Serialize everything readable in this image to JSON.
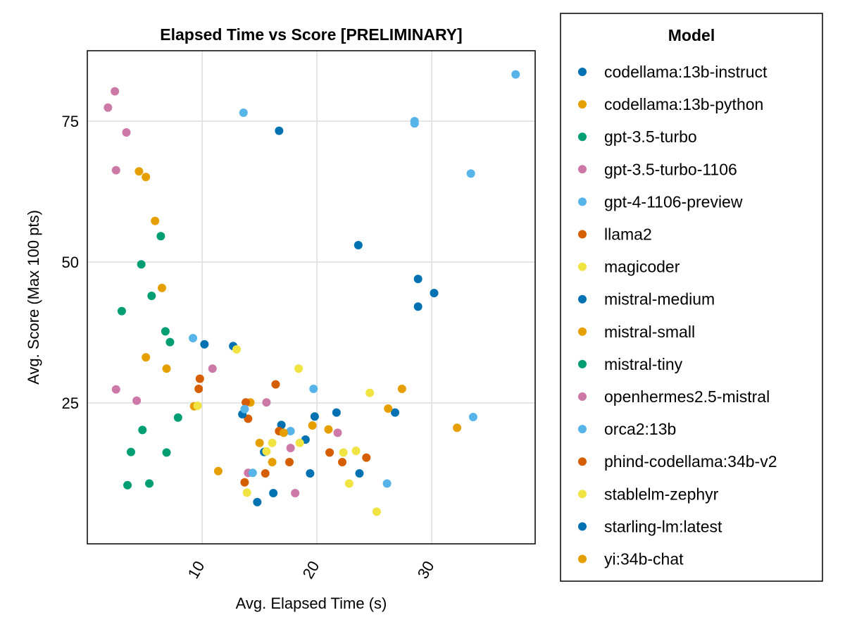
{
  "chart_data": {
    "type": "scatter",
    "title": "Elapsed Time vs Score [PRELIMINARY]",
    "xlabel": "Avg. Elapsed Time (s)",
    "ylabel": "Avg. Score (Max 100 pts)",
    "xlim": [
      0,
      39
    ],
    "ylim": [
      0,
      87.5
    ],
    "xticks": [
      10,
      20,
      30
    ],
    "yticks": [
      25,
      50,
      75
    ],
    "grid": true,
    "legend": {
      "title": "Model",
      "position": "right-outside"
    },
    "series": [
      {
        "name": "codellama:13b-instruct",
        "color": "#0072B2",
        "points": [
          [
            16.7,
            73.3
          ],
          [
            23.6,
            53.0
          ],
          [
            28.8,
            47.0
          ],
          [
            28.8,
            42.1
          ],
          [
            30.2,
            44.5
          ],
          [
            10.2,
            35.4
          ],
          [
            12.7,
            35.1
          ],
          [
            21.7,
            23.3
          ],
          [
            26.8,
            23.3
          ],
          [
            16.9,
            21.1
          ],
          [
            19.0,
            18.5
          ],
          [
            15.4,
            16.3
          ],
          [
            19.4,
            12.5
          ],
          [
            23.7,
            12.5
          ],
          [
            16.2,
            9.0
          ],
          [
            14.8,
            7.4
          ]
        ]
      },
      {
        "name": "codellama:13b-python",
        "color": "#E69F00",
        "points": [
          [
            4.5,
            66.1
          ],
          [
            5.1,
            65.1
          ],
          [
            5.9,
            57.3
          ],
          [
            6.5,
            45.4
          ],
          [
            5.1,
            33.1
          ],
          [
            6.9,
            31.1
          ],
          [
            9.3,
            24.4
          ],
          [
            14.2,
            25.1
          ],
          [
            27.4,
            27.5
          ],
          [
            26.2,
            24.0
          ]
        ]
      },
      {
        "name": "gpt-3.5-turbo",
        "color": "#009E73",
        "points": [
          [
            6.4,
            54.6
          ],
          [
            4.7,
            49.6
          ],
          [
            5.6,
            44.0
          ],
          [
            3.0,
            41.3
          ],
          [
            6.8,
            37.7
          ],
          [
            7.2,
            35.8
          ],
          [
            7.9,
            22.4
          ],
          [
            4.8,
            20.2
          ],
          [
            3.8,
            16.3
          ],
          [
            6.9,
            16.2
          ],
          [
            3.5,
            10.4
          ],
          [
            5.4,
            10.7
          ]
        ]
      },
      {
        "name": "gpt-3.5-turbo-1106",
        "color": "#CC79A7",
        "points": [
          [
            2.4,
            80.3
          ],
          [
            1.8,
            77.4
          ],
          [
            3.4,
            73.0
          ],
          [
            2.5,
            66.3
          ],
          [
            2.5,
            27.4
          ],
          [
            4.3,
            25.4
          ],
          [
            10.9,
            31.1
          ],
          [
            15.6,
            25.1
          ],
          [
            17.7,
            17.0
          ],
          [
            21.8,
            19.7
          ],
          [
            14.0,
            12.6
          ],
          [
            18.1,
            9.0
          ]
        ]
      },
      {
        "name": "gpt-4-1106-preview",
        "color": "#56B4E9",
        "points": [
          [
            37.3,
            83.3
          ],
          [
            13.6,
            76.5
          ],
          [
            28.5,
            75.0
          ],
          [
            28.5,
            74.6
          ],
          [
            33.4,
            65.7
          ],
          [
            9.2,
            36.5
          ],
          [
            19.7,
            27.5
          ],
          [
            33.6,
            22.5
          ],
          [
            17.7,
            20.0
          ],
          [
            26.1,
            10.7
          ],
          [
            14.4,
            12.6
          ]
        ]
      },
      {
        "name": "llama2",
        "color": "#D55E00",
        "points": [
          [
            9.8,
            29.3
          ],
          [
            9.7,
            27.5
          ],
          [
            16.4,
            28.3
          ],
          [
            13.8,
            25.1
          ],
          [
            14.0,
            22.2
          ],
          [
            16.7,
            20.0
          ],
          [
            21.1,
            16.2
          ],
          [
            22.2,
            14.5
          ],
          [
            24.3,
            15.3
          ],
          [
            17.6,
            14.5
          ],
          [
            15.5,
            12.5
          ],
          [
            13.7,
            10.9
          ]
        ]
      },
      {
        "name": "magicoder",
        "color": "#F0E442",
        "points": [
          [
            13.0,
            34.5
          ],
          [
            18.4,
            31.1
          ],
          [
            9.6,
            24.5
          ],
          [
            24.6,
            26.8
          ],
          [
            15.6,
            16.4
          ],
          [
            16.1,
            17.9
          ],
          [
            18.5,
            17.9
          ],
          [
            22.3,
            16.2
          ],
          [
            23.4,
            16.5
          ],
          [
            22.8,
            10.7
          ],
          [
            13.9,
            9.1
          ],
          [
            25.2,
            5.7
          ]
        ]
      },
      {
        "name": "mistral-medium",
        "color": "#0072B2",
        "points": [
          [
            13.5,
            23.0
          ],
          [
            19.8,
            22.6
          ]
        ]
      },
      {
        "name": "mistral-small",
        "color": "#E69F00",
        "points": [
          [
            15.0,
            17.9
          ],
          [
            16.1,
            14.5
          ],
          [
            17.1,
            19.7
          ],
          [
            19.6,
            21.0
          ],
          [
            21.0,
            20.3
          ],
          [
            32.2,
            20.6
          ],
          [
            11.4,
            12.9
          ]
        ]
      },
      {
        "name": "mistral-tiny",
        "color": "#009E73",
        "points": []
      },
      {
        "name": "openhermes2.5-mistral",
        "color": "#CC79A7",
        "points": []
      },
      {
        "name": "orca2:13b",
        "color": "#56B4E9",
        "points": [
          [
            13.7,
            23.9
          ]
        ]
      },
      {
        "name": "phind-codellama:34b-v2",
        "color": "#D55E00",
        "points": []
      },
      {
        "name": "stablelm-zephyr",
        "color": "#F0E442",
        "points": []
      },
      {
        "name": "starling-lm:latest",
        "color": "#0072B2",
        "points": []
      },
      {
        "name": "yi:34b-chat",
        "color": "#E69F00",
        "points": []
      }
    ]
  }
}
